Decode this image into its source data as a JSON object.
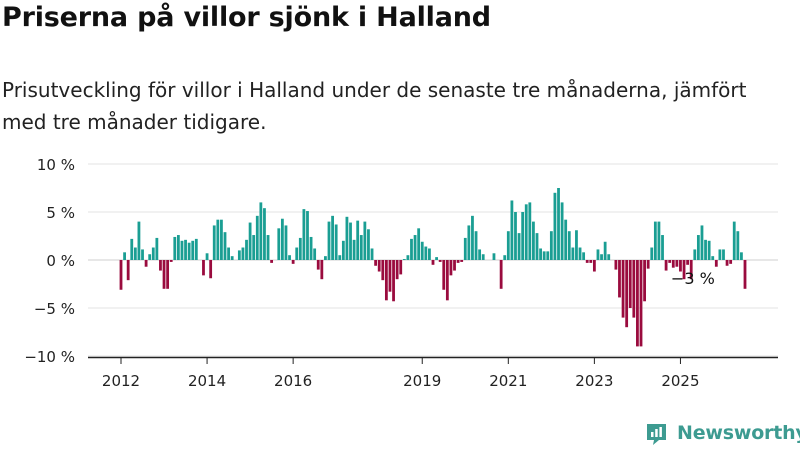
{
  "header": {
    "title": "Priserna på villor sjönk i Halland",
    "subtitle": "Prisutveckling för villor i Halland under de senaste tre månaderna, jämfört med tre månader tidigare."
  },
  "brand": {
    "name": "Newsworthy",
    "icon": "newsworthy-logo-icon",
    "color": "#3d9b91"
  },
  "colors": {
    "positive": "#1a9e93",
    "negative": "#9a0b3e",
    "grid": "#e3e3e3",
    "axis": "#222222"
  },
  "chart_data": {
    "type": "bar",
    "title": "Priserna på villor sjönk i Halland",
    "xlabel": "",
    "ylabel": "",
    "y_unit": "%",
    "ylim": [
      -10,
      10
    ],
    "y_ticks": [
      {
        "value": 10,
        "label": "10 %"
      },
      {
        "value": 5,
        "label": "5 %"
      },
      {
        "value": 0,
        "label": "0 %"
      },
      {
        "value": -5,
        "label": "−5 %"
      },
      {
        "value": -10,
        "label": "−10 %"
      }
    ],
    "x_ticks": [
      {
        "date": "2012-01",
        "label": "2012"
      },
      {
        "date": "2014-01",
        "label": "2014"
      },
      {
        "date": "2016-01",
        "label": "2016"
      },
      {
        "date": "2019-01",
        "label": "2019"
      },
      {
        "date": "2021-01",
        "label": "2021"
      },
      {
        "date": "2023-01",
        "label": "2023"
      },
      {
        "date": "2025-01",
        "label": "2025"
      }
    ],
    "start": "2012-01",
    "grid": true,
    "annotation": {
      "date": "2025-05",
      "value": -3,
      "label": "−3 %"
    },
    "values": [
      -3.1,
      0.8,
      -2.1,
      2.2,
      1.3,
      4.0,
      1.1,
      -0.7,
      0.6,
      1.3,
      2.3,
      -1.1,
      -3.0,
      -3.0,
      -0.2,
      2.4,
      2.6,
      2.0,
      2.1,
      1.8,
      2.0,
      2.2,
      null,
      -1.6,
      0.7,
      -1.9,
      3.6,
      4.2,
      4.2,
      2.9,
      1.3,
      0.4,
      null,
      1.0,
      1.3,
      2.1,
      3.9,
      2.6,
      4.6,
      6.0,
      5.4,
      2.6,
      -0.3,
      null,
      3.3,
      4.3,
      3.6,
      0.5,
      -0.4,
      1.3,
      2.3,
      5.3,
      5.1,
      2.4,
      1.2,
      -1.0,
      -2.0,
      0.4,
      4.0,
      4.6,
      3.7,
      0.5,
      2.0,
      4.5,
      3.9,
      2.1,
      4.1,
      2.6,
      4.0,
      3.2,
      1.2,
      -0.6,
      -1.2,
      -2.1,
      -4.2,
      -3.3,
      -4.3,
      -2.0,
      -1.5,
      0.1,
      0.5,
      2.2,
      2.6,
      3.3,
      1.9,
      1.4,
      1.2,
      -0.5,
      0.3,
      -0.2,
      -3.1,
      -4.2,
      -1.6,
      -1.1,
      -0.3,
      -0.2,
      2.3,
      3.6,
      4.6,
      3.0,
      1.1,
      0.6,
      null,
      null,
      0.7,
      null,
      -3.0,
      0.5,
      3.0,
      6.2,
      5.0,
      2.8,
      5.0,
      5.8,
      6.0,
      4.0,
      2.8,
      1.2,
      0.9,
      0.9,
      3.0,
      7.0,
      7.5,
      6.0,
      4.2,
      3.0,
      1.3,
      3.1,
      1.3,
      0.8,
      -0.3,
      -0.3,
      -1.2,
      1.1,
      0.6,
      1.9,
      0.6,
      null,
      -1.0,
      -3.9,
      -6.0,
      -7.0,
      -5.0,
      -6.0,
      -9.0,
      -9.0,
      -4.3,
      -0.9,
      1.3,
      4.0,
      4.0,
      2.6,
      -1.1,
      -0.3,
      -0.8,
      -0.7,
      -1.2,
      -2.0,
      -0.5,
      -2.0,
      1.1,
      2.6,
      3.6,
      2.1,
      2.0,
      0.4,
      -0.7,
      1.1,
      1.1,
      -0.6,
      -0.4,
      4.0,
      3.0,
      0.8,
      -3.0
    ]
  }
}
